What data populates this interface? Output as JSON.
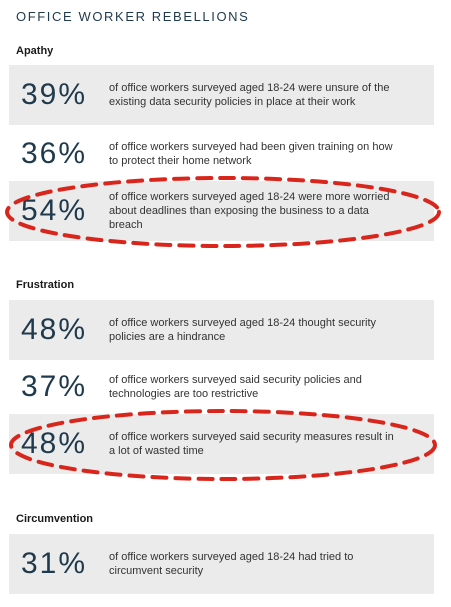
{
  "title": "OFFICE WORKER REBELLIONS",
  "sections": [
    {
      "heading": "Apathy",
      "stats": [
        {
          "percent": "39%",
          "text": "of office workers surveyed aged 18-24 were unsure of the existing data security policies in place at their work"
        },
        {
          "percent": "36%",
          "text": "of office workers surveyed had been given training on how to protect their home network"
        },
        {
          "percent": "54%",
          "text": "of office workers surveyed aged 18-24 were more worried about deadlines than exposing the business to a data breach"
        }
      ]
    },
    {
      "heading": "Frustration",
      "stats": [
        {
          "percent": "48%",
          "text": "of office workers surveyed aged 18-24 thought security policies are a hindrance"
        },
        {
          "percent": "37%",
          "text": "of office workers surveyed said security policies and technologies are too restrictive"
        },
        {
          "percent": "48%",
          "text": "of office workers surveyed said security measures result in a lot of wasted time"
        }
      ]
    },
    {
      "heading": "Circumvention",
      "stats": [
        {
          "percent": "31%",
          "text": "of office workers surveyed aged 18-24 had tried to circumvent security"
        }
      ]
    }
  ],
  "colors": {
    "heading_text": "#1f3a4d",
    "row_shade": "#ebebeb",
    "highlight_dash": "#d9261c"
  }
}
